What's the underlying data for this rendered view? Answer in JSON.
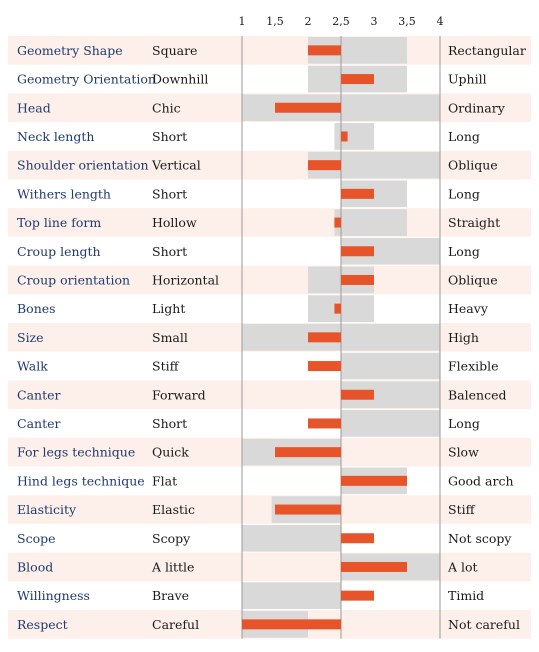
{
  "chart_data": {
    "type": "bar",
    "subtype": "diverging-range-bar",
    "title": "",
    "xlabel": "",
    "ylabel": "",
    "xlim": [
      1,
      4
    ],
    "center": 2.5,
    "x_ticks": [
      "1",
      "1,5",
      "2",
      "2,5",
      "3",
      "3,5",
      "4"
    ],
    "x_tick_values": [
      1,
      1.5,
      2,
      2.5,
      3,
      3.5,
      4
    ],
    "rows": [
      {
        "trait": "Geometry Shape",
        "low": "Square",
        "high": "Rectangular",
        "value": 2.0,
        "range": [
          2.0,
          3.5
        ]
      },
      {
        "trait": "Geometry Orientation",
        "low": "Downhill",
        "high": "Uphill",
        "value": 3.0,
        "range": [
          2.0,
          3.5
        ]
      },
      {
        "trait": "Head",
        "low": "Chic",
        "high": "Ordinary",
        "value": 1.5,
        "range": [
          1.0,
          4.0
        ]
      },
      {
        "trait": "Neck length",
        "low": "Short",
        "high": "Long",
        "value": 2.6,
        "range": [
          2.4,
          3.0
        ]
      },
      {
        "trait": "Shoulder orientation",
        "low": "Vertical",
        "high": "Oblique",
        "value": 2.0,
        "range": [
          2.0,
          4.0
        ]
      },
      {
        "trait": "Withers length",
        "low": "Short",
        "high": "Long",
        "value": 3.0,
        "range": [
          2.5,
          3.5
        ]
      },
      {
        "trait": "Top line form",
        "low": "Hollow",
        "high": "Straight",
        "value": 2.4,
        "range": [
          2.4,
          3.5
        ]
      },
      {
        "trait": "Croup length",
        "low": "Short",
        "high": "Long",
        "value": 3.0,
        "range": [
          2.5,
          4.0
        ]
      },
      {
        "trait": "Croup orientation",
        "low": "Horizontal",
        "high": "Oblique",
        "value": 3.0,
        "range": [
          2.0,
          3.0
        ]
      },
      {
        "trait": "Bones",
        "low": "Light",
        "high": "Heavy",
        "value": 2.4,
        "range": [
          2.0,
          3.0
        ]
      },
      {
        "trait": "Size",
        "low": "Small",
        "high": "High",
        "value": 2.0,
        "range": [
          1.0,
          4.0
        ]
      },
      {
        "trait": "Walk",
        "low": "Stiff",
        "high": "Flexible",
        "value": 2.0,
        "range": [
          2.5,
          4.0
        ]
      },
      {
        "trait": "Canter",
        "low": "Forward",
        "high": "Balenced",
        "value": 3.0,
        "range": [
          2.5,
          4.0
        ]
      },
      {
        "trait": "Canter",
        "low": "Short",
        "high": "Long",
        "value": 2.0,
        "range": [
          2.5,
          4.0
        ]
      },
      {
        "trait": "For legs technique",
        "low": "Quick",
        "high": "Slow",
        "value": 1.5,
        "range": [
          1.0,
          2.5
        ]
      },
      {
        "trait": "Hind legs technique",
        "low": "Flat",
        "high": "Good arch",
        "value": 3.5,
        "range": [
          2.5,
          3.5
        ]
      },
      {
        "trait": "Elasticity",
        "low": "Elastic",
        "high": "Stiff",
        "value": 1.5,
        "range": [
          1.45,
          2.5
        ]
      },
      {
        "trait": "Scope",
        "low": "Scopy",
        "high": "Not scopy",
        "value": 3.0,
        "range": [
          1.0,
          2.5
        ]
      },
      {
        "trait": "Blood",
        "low": "A little",
        "high": "A lot",
        "value": 3.5,
        "range": [
          2.5,
          4.0
        ]
      },
      {
        "trait": "Willingness",
        "low": "Brave",
        "high": "Timid",
        "value": 3.0,
        "range": [
          1.0,
          2.5
        ]
      },
      {
        "trait": "Respect",
        "low": "Careful",
        "high": "Not careful",
        "value": 1.0,
        "range": [
          1.0,
          2.0
        ]
      }
    ]
  },
  "colors": {
    "bar": "#e8542a",
    "range": "#d9d9d9",
    "row_stripe": "#fdf0ea",
    "axis_line": "#9a9a9a",
    "trait_text": "#1f3a6e",
    "pole_text": "#1a1a1a"
  }
}
